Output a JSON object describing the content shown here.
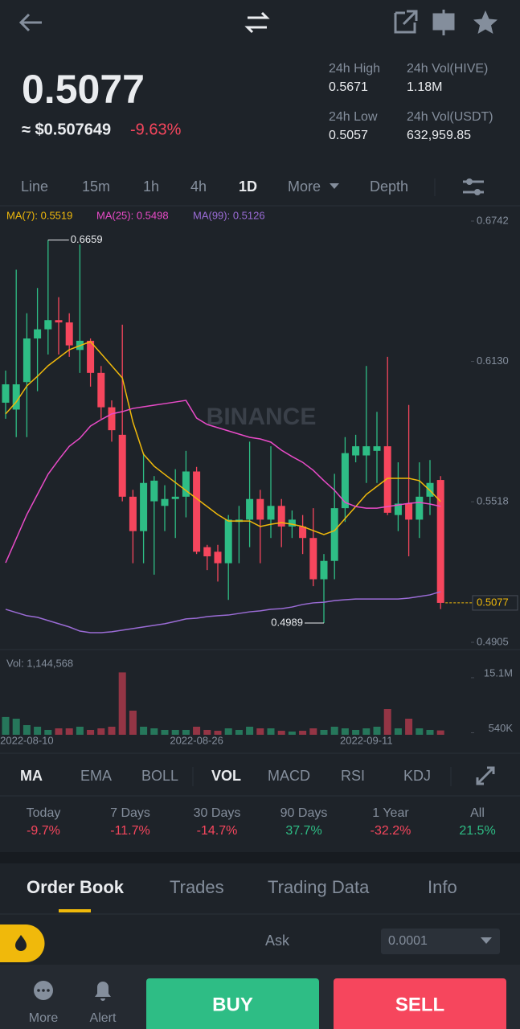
{
  "header": {
    "price": "0.5077",
    "price_usd": "≈ $0.507649",
    "change": "-9.63%",
    "stats": [
      {
        "label": "24h High",
        "value": "0.5671"
      },
      {
        "label": "24h Vol(HIVE)",
        "value": "1.18M"
      },
      {
        "label": "24h Low",
        "value": "0.5057"
      },
      {
        "label": "24h Vol(USDT)",
        "value": "632,959.85"
      }
    ]
  },
  "intervals": [
    "Line",
    "15m",
    "1h",
    "4h",
    "1D",
    "More",
    "Depth"
  ],
  "chart_data": [
    {
      "type": "candlestick",
      "categories": [
        null,
        null,
        "2022-08-10",
        null,
        null,
        null,
        null,
        null,
        null,
        null,
        null,
        null,
        null,
        null,
        null,
        null,
        null,
        null,
        "2022-08-26",
        null,
        null,
        null,
        null,
        null,
        null,
        null,
        null,
        null,
        null,
        null,
        null,
        null,
        null,
        null,
        "2022-09-11",
        null,
        null,
        null,
        null,
        null,
        null,
        null
      ],
      "open": [
        0.595,
        0.592,
        0.604,
        0.623,
        0.627,
        0.631,
        0.63,
        0.618,
        0.622,
        0.608,
        0.593,
        0.581,
        0.554,
        0.539,
        0.552,
        0.55,
        0.553,
        0.554,
        0.565,
        0.532,
        0.53,
        0.525,
        0.543,
        0.544,
        0.553,
        0.544,
        0.55,
        0.541,
        0.541,
        0.536,
        0.518,
        0.526,
        0.549,
        0.572,
        0.572,
        0.574,
        0.576,
        0.546,
        0.551,
        0.544,
        0.554,
        0.5613
      ],
      "high": [
        0.609,
        0.653,
        0.634,
        0.645,
        0.6659,
        0.641,
        0.634,
        0.664,
        0.623,
        0.611,
        0.596,
        0.629,
        0.557,
        0.573,
        0.563,
        0.559,
        0.566,
        0.574,
        0.567,
        0.533,
        0.533,
        0.546,
        0.55,
        0.578,
        0.557,
        0.576,
        0.553,
        0.548,
        0.546,
        0.549,
        0.529,
        0.564,
        0.58,
        0.581,
        0.611,
        0.591,
        0.615,
        0.569,
        0.594,
        0.569,
        0.57,
        0.563
      ],
      "low": [
        0.588,
        0.58,
        0.58,
        0.6,
        0.616,
        0.616,
        0.615,
        0.608,
        0.602,
        0.588,
        0.578,
        0.552,
        0.525,
        0.525,
        0.52,
        0.539,
        0.536,
        0.545,
        0.529,
        0.522,
        0.517,
        0.509,
        0.525,
        0.532,
        0.525,
        0.536,
        0.532,
        0.536,
        0.529,
        0.515,
        0.4989,
        0.518,
        0.543,
        0.569,
        0.56,
        0.56,
        0.546,
        0.539,
        0.528,
        0.536,
        0.546,
        0.505
      ],
      "close": [
        0.603,
        0.603,
        0.623,
        0.627,
        0.631,
        0.63,
        0.62,
        0.622,
        0.608,
        0.593,
        0.583,
        0.554,
        0.539,
        0.56,
        0.561,
        0.553,
        0.554,
        0.565,
        0.53,
        0.528,
        0.525,
        0.544,
        0.544,
        0.553,
        0.544,
        0.55,
        0.541,
        0.544,
        0.536,
        0.518,
        0.526,
        0.549,
        0.573,
        0.576,
        0.576,
        0.576,
        0.547,
        0.551,
        0.544,
        0.554,
        0.56,
        0.5077
      ],
      "series": [
        {
          "name": "MA(7): 0.5519",
          "color": "#f0b90b",
          "values": [
            0.5901,
            0.5953,
            0.6023,
            0.6065,
            0.6111,
            0.6146,
            0.6181,
            0.6199,
            0.6216,
            0.6164,
            0.6111,
            0.6058,
            0.5865,
            0.5725,
            0.5673,
            0.5637,
            0.5602,
            0.5567,
            0.5532,
            0.5497,
            0.5462,
            0.5434,
            0.5434,
            0.5434,
            0.541,
            0.542,
            0.5427,
            0.542,
            0.541,
            0.5392,
            0.5375,
            0.5392,
            0.5445,
            0.5497,
            0.555,
            0.5585,
            0.562,
            0.562,
            0.562,
            0.561,
            0.5567,
            0.5519
          ]
        },
        {
          "name": "MA(25): 0.5498",
          "color": "#e94bc8",
          "values": [
            0.5252,
            0.5357,
            0.5462,
            0.555,
            0.5638,
            0.5701,
            0.576,
            0.5795,
            0.5848,
            0.5876,
            0.5901,
            0.5911,
            0.5925,
            0.5932,
            0.5939,
            0.5946,
            0.5953,
            0.596,
            0.5883,
            0.5855,
            0.5841,
            0.5827,
            0.5813,
            0.5799,
            0.5792,
            0.5778,
            0.5743,
            0.5715,
            0.569,
            0.5655,
            0.561,
            0.5568,
            0.5515,
            0.5497,
            0.549,
            0.549,
            0.5497,
            0.5504,
            0.5511,
            0.5515,
            0.5508,
            0.5498
          ]
        },
        {
          "name": "MA(99): 0.5126",
          "color": "#9b6cd6",
          "values": [
            0.5049,
            0.5035,
            0.5021,
            0.5014,
            0.5,
            0.4986,
            0.4972,
            0.4954,
            0.4947,
            0.4947,
            0.4951,
            0.4958,
            0.4965,
            0.4972,
            0.4979,
            0.4986,
            0.4996,
            0.5007,
            0.501,
            0.5017,
            0.5021,
            0.5024,
            0.5031,
            0.5038,
            0.5042,
            0.5049,
            0.5052,
            0.5059,
            0.507,
            0.5077,
            0.508,
            0.5087,
            0.5091,
            0.5094,
            0.5094,
            0.5094,
            0.5094,
            0.5094,
            0.5098,
            0.5105,
            0.5112,
            0.5126
          ]
        }
      ],
      "ylim": [
        0.4905,
        0.6742
      ],
      "yticks": [
        0.4905,
        0.5518,
        {
          "value": 0.613,
          "label": "0.6130"
        },
        0.6742
      ],
      "high_label": "0.6659",
      "low_label": "0.4989",
      "up_color": "#2ebd85",
      "down_color": "#f6465d",
      "grid": false
    },
    {
      "type": "bar",
      "title": "Vol: 1,144,568",
      "values": [
        4700000,
        4250000,
        2550000,
        2130000,
        1280000,
        1700000,
        1700000,
        2130000,
        1280000,
        1700000,
        2130000,
        16500000,
        6380000,
        2130000,
        1700000,
        1280000,
        1280000,
        1280000,
        2130000,
        1280000,
        1060000,
        1700000,
        1280000,
        2130000,
        1700000,
        1700000,
        1060000,
        850000,
        1060000,
        1700000,
        1280000,
        2130000,
        1700000,
        1280000,
        1700000,
        2130000,
        6800000,
        1700000,
        4250000,
        1700000,
        1280000,
        1144568
      ],
      "ylim": [
        0,
        16800000
      ],
      "yticks": [
        {
          "value": 540000,
          "label": "540K"
        },
        {
          "value": 15100000,
          "label": "15.1M"
        }
      ]
    }
  ],
  "watermark": "BINANCE",
  "indicators": [
    "MA",
    "EMA",
    "BOLL",
    "VOL",
    "MACD",
    "RSI",
    "KDJ"
  ],
  "performance": [
    {
      "label": "Today",
      "value": "-9.7%"
    },
    {
      "label": "7 Days",
      "value": "-11.7%"
    },
    {
      "label": "30 Days",
      "value": "-14.7%"
    },
    {
      "label": "90 Days",
      "value": "37.7%"
    },
    {
      "label": "1 Year",
      "value": "-32.2%"
    },
    {
      "label": "All",
      "value": "21.5%"
    }
  ],
  "tabs": [
    "Order Book",
    "Trades",
    "Trading Data",
    "Info"
  ],
  "order_book": {
    "ask": "Ask",
    "precision": "0.0001"
  },
  "nav": {
    "more": "More",
    "alert": "Alert",
    "buy": "BUY",
    "sell": "SELL"
  }
}
